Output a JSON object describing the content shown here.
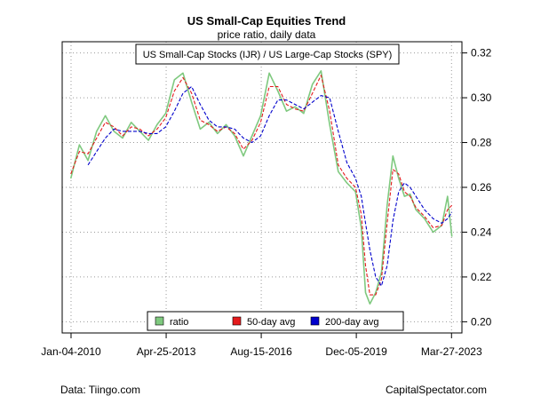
{
  "chart_data": {
    "type": "line",
    "title": "US Small-Cap Equities Trend",
    "subtitle": "price ratio, daily data",
    "ratio_label": "US Small-Cap Stocks (IJR) / US Large-Cap Stocks (SPY)",
    "xlabel": "",
    "ylabel": "",
    "x_ticks": [
      "Jan-04-2010",
      "Apr-25-2013",
      "Aug-15-2016",
      "Dec-05-2019",
      "Mar-27-2023"
    ],
    "y_ticks": [
      "0.20",
      "0.22",
      "0.24",
      "0.26",
      "0.28",
      "0.30",
      "0.32"
    ],
    "ylim": [
      0.195,
      0.325
    ],
    "xlim": [
      2009.7,
      2023.6
    ],
    "grid": true,
    "legend_position": "bottom-center",
    "series": [
      {
        "name": "ratio",
        "color": "#7fc97f",
        "x": [
          2010.0,
          2010.3,
          2010.6,
          2010.9,
          2011.2,
          2011.5,
          2011.8,
          2012.1,
          2012.4,
          2012.7,
          2013.0,
          2013.3,
          2013.6,
          2013.9,
          2014.2,
          2014.5,
          2014.8,
          2015.1,
          2015.4,
          2015.7,
          2016.0,
          2016.3,
          2016.6,
          2016.9,
          2017.2,
          2017.5,
          2017.8,
          2018.1,
          2018.4,
          2018.7,
          2019.0,
          2019.3,
          2019.6,
          2019.9,
          2020.1,
          2020.25,
          2020.4,
          2020.6,
          2020.8,
          2021.0,
          2021.2,
          2021.4,
          2021.6,
          2021.8,
          2022.0,
          2022.3,
          2022.6,
          2022.9,
          2023.1,
          2023.25
        ],
        "values": [
          0.264,
          0.279,
          0.272,
          0.285,
          0.292,
          0.285,
          0.282,
          0.289,
          0.285,
          0.281,
          0.288,
          0.293,
          0.308,
          0.311,
          0.298,
          0.286,
          0.289,
          0.284,
          0.288,
          0.283,
          0.274,
          0.283,
          0.292,
          0.311,
          0.303,
          0.294,
          0.296,
          0.293,
          0.306,
          0.312,
          0.288,
          0.267,
          0.262,
          0.258,
          0.242,
          0.213,
          0.208,
          0.213,
          0.222,
          0.252,
          0.274,
          0.264,
          0.256,
          0.257,
          0.25,
          0.246,
          0.24,
          0.243,
          0.256,
          0.238
        ]
      },
      {
        "name": "50-day avg",
        "color": "#e41a1c",
        "x": [
          2010.0,
          2010.3,
          2010.6,
          2010.9,
          2011.2,
          2011.5,
          2011.8,
          2012.1,
          2012.4,
          2012.7,
          2013.0,
          2013.3,
          2013.6,
          2013.9,
          2014.2,
          2014.5,
          2014.8,
          2015.1,
          2015.4,
          2015.7,
          2016.0,
          2016.3,
          2016.6,
          2016.9,
          2017.2,
          2017.5,
          2017.8,
          2018.1,
          2018.4,
          2018.7,
          2019.0,
          2019.3,
          2019.6,
          2019.9,
          2020.1,
          2020.25,
          2020.4,
          2020.6,
          2020.8,
          2021.0,
          2021.2,
          2021.4,
          2021.6,
          2021.8,
          2022.0,
          2022.3,
          2022.6,
          2022.9,
          2023.1,
          2023.25
        ],
        "values": [
          0.266,
          0.276,
          0.275,
          0.282,
          0.289,
          0.287,
          0.283,
          0.287,
          0.286,
          0.283,
          0.286,
          0.291,
          0.303,
          0.309,
          0.302,
          0.29,
          0.288,
          0.285,
          0.287,
          0.284,
          0.277,
          0.281,
          0.289,
          0.305,
          0.305,
          0.297,
          0.295,
          0.294,
          0.302,
          0.31,
          0.294,
          0.27,
          0.264,
          0.26,
          0.248,
          0.225,
          0.212,
          0.212,
          0.219,
          0.244,
          0.268,
          0.266,
          0.258,
          0.256,
          0.251,
          0.247,
          0.242,
          0.243,
          0.25,
          0.252
        ]
      },
      {
        "name": "200-day avg",
        "color": "#0000cc",
        "x": [
          2010.0,
          2010.3,
          2010.6,
          2010.9,
          2011.2,
          2011.5,
          2011.8,
          2012.1,
          2012.4,
          2012.7,
          2013.0,
          2013.3,
          2013.6,
          2013.9,
          2014.2,
          2014.5,
          2014.8,
          2015.1,
          2015.4,
          2015.7,
          2016.0,
          2016.3,
          2016.6,
          2016.9,
          2017.2,
          2017.5,
          2017.8,
          2018.1,
          2018.4,
          2018.7,
          2019.0,
          2019.3,
          2019.6,
          2019.9,
          2020.1,
          2020.25,
          2020.4,
          2020.6,
          2020.8,
          2021.0,
          2021.2,
          2021.4,
          2021.6,
          2021.8,
          2022.0,
          2022.3,
          2022.6,
          2022.9,
          2023.1,
          2023.25
        ],
        "values": [
          null,
          null,
          0.27,
          0.276,
          0.282,
          0.286,
          0.285,
          0.285,
          0.285,
          0.284,
          0.284,
          0.287,
          0.294,
          0.302,
          0.305,
          0.297,
          0.29,
          0.287,
          0.287,
          0.286,
          0.282,
          0.28,
          0.283,
          0.292,
          0.299,
          0.299,
          0.297,
          0.295,
          0.298,
          0.301,
          0.3,
          0.285,
          0.271,
          0.264,
          0.256,
          0.244,
          0.232,
          0.22,
          0.216,
          0.225,
          0.245,
          0.258,
          0.262,
          0.26,
          0.256,
          0.25,
          0.246,
          0.244,
          0.246,
          0.249
        ]
      }
    ],
    "legend": {
      "ratio": "ratio",
      "ma50": "50-day avg",
      "ma200": "200-day avg"
    }
  },
  "footer": {
    "source": "Data: Tiingo.com",
    "credit": "CapitalSpectator.com"
  }
}
